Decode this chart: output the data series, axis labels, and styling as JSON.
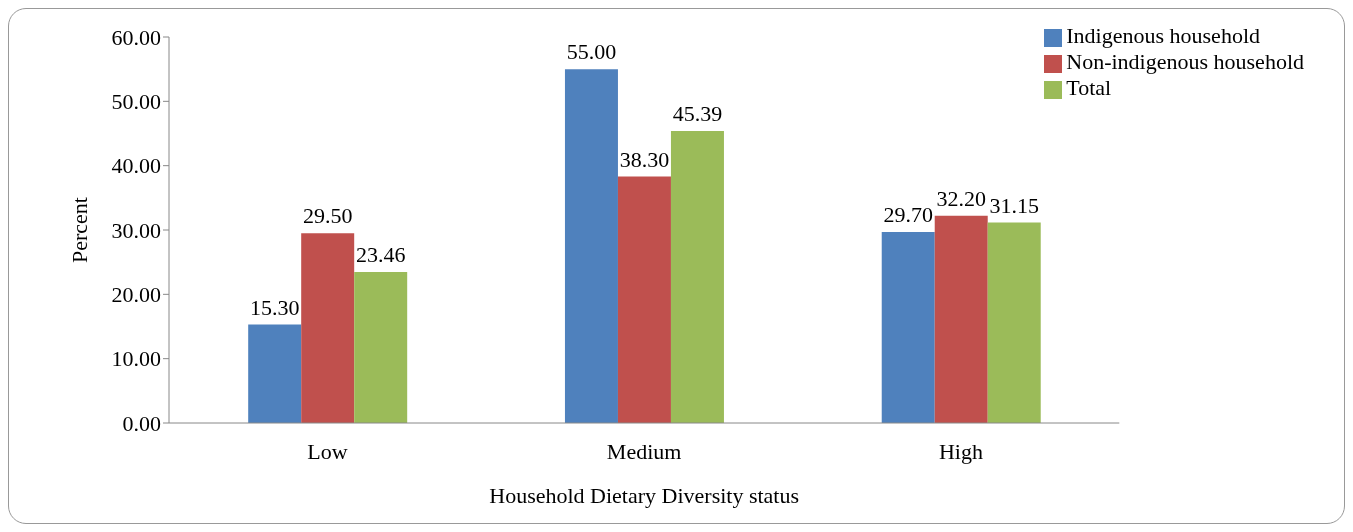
{
  "chart_data": {
    "type": "bar",
    "xlabel": "Household Dietary Diversity status",
    "ylabel": "Percent",
    "categories": [
      "Low",
      "Medium",
      "High"
    ],
    "series": [
      {
        "name": "Indigenous household",
        "color": "#4f81bd",
        "values": [
          15.3,
          55.0,
          29.7
        ],
        "value_labels": [
          "15.30",
          "55.00",
          "29.70"
        ]
      },
      {
        "name": "Non-indigenous household",
        "color": "#c0504d",
        "values": [
          29.5,
          38.3,
          32.2
        ],
        "value_labels": [
          "29.50",
          "38.30",
          "32.20"
        ]
      },
      {
        "name": "Total",
        "color": "#9bbb59",
        "values": [
          23.46,
          45.39,
          31.15
        ],
        "value_labels": [
          "23.46",
          "45.39",
          "31.15"
        ]
      }
    ],
    "ylim": [
      0,
      60
    ],
    "yticks": [
      {
        "value": 0,
        "label": "0.00"
      },
      {
        "value": 10,
        "label": "10.00"
      },
      {
        "value": 20,
        "label": "20.00"
      },
      {
        "value": 30,
        "label": "30.00"
      },
      {
        "value": 40,
        "label": "40.00"
      },
      {
        "value": 50,
        "label": "50.00"
      },
      {
        "value": 60,
        "label": "60.00"
      }
    ],
    "grid": false,
    "legend": "top right"
  }
}
